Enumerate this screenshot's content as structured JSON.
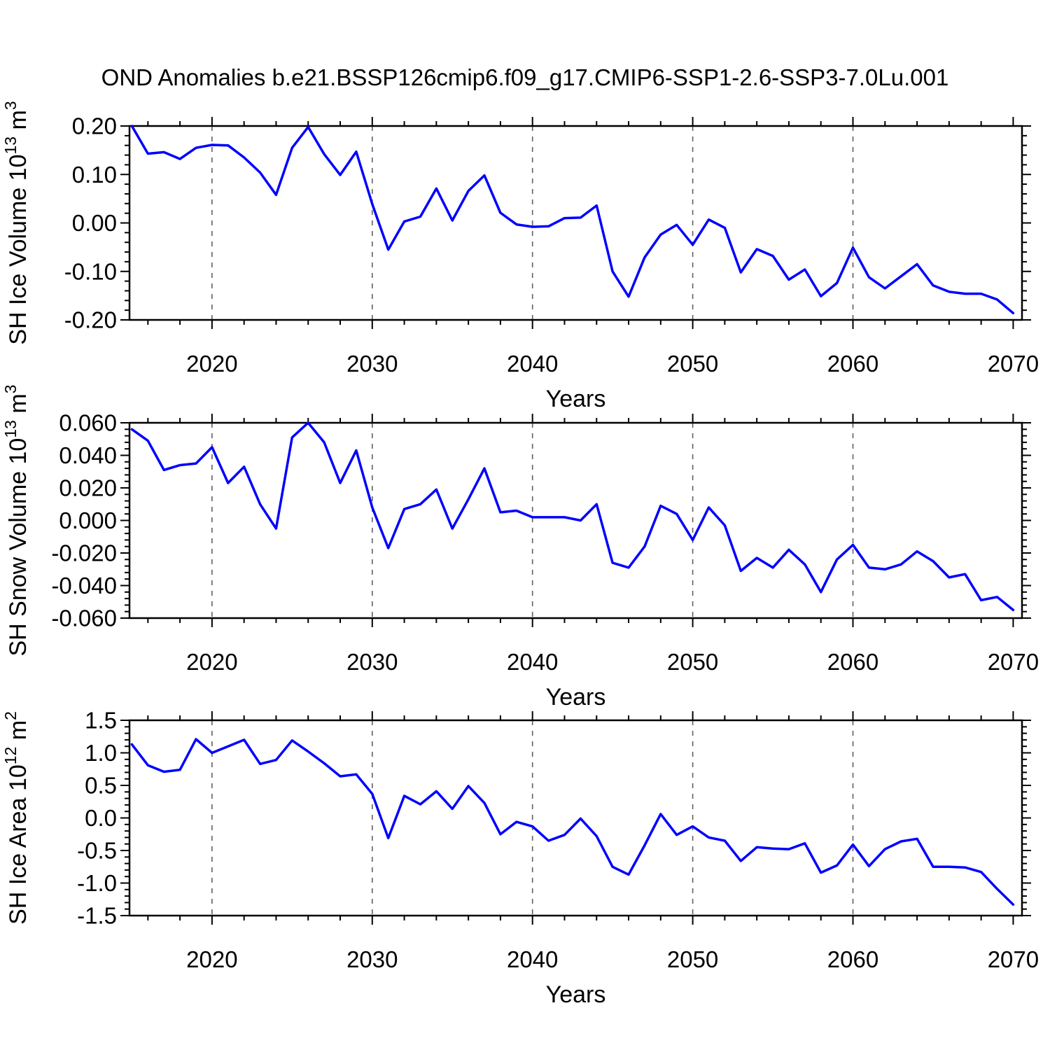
{
  "title": "OND Anomalies b.e21.BSSP126cmip6.f09_g17.CMIP6-SSP1-2.6-SSP3-7.0Lu.001",
  "styles": {
    "line_color": "#0000ff",
    "grid_color": "#606060",
    "axis_color": "#000000",
    "background": "#ffffff"
  },
  "chart_data": [
    {
      "id": "sh-ice-volume",
      "type": "line",
      "ylabel": "SH Ice Volume 10^13 m^3",
      "ylabel_segments": [
        {
          "t": "SH Ice Volume 10"
        },
        {
          "t": "13",
          "sup": true
        },
        {
          "t": " m"
        },
        {
          "t": "3",
          "sup": true
        }
      ],
      "xlabel": "Years",
      "ylim": [
        -0.2,
        0.2
      ],
      "y_major_step": 0.1,
      "y_minor_step": 0.02,
      "y_tick_labels": [
        {
          "v": 0.2,
          "label": "0.20"
        },
        {
          "v": 0.1,
          "label": "0.10"
        },
        {
          "v": 0.0,
          "label": "0.00"
        },
        {
          "v": -0.1,
          "label": "-0.10"
        },
        {
          "v": -0.2,
          "label": "-0.20"
        }
      ],
      "x_major_ticks": [
        2020,
        2030,
        2040,
        2050,
        2060,
        2070
      ],
      "x_minor_step": 2,
      "grid_years": [
        2020,
        2030,
        2040,
        2050,
        2060
      ],
      "xlim": [
        2014.85,
        2070.55
      ],
      "x": [
        2015,
        2016,
        2017,
        2018,
        2019,
        2020,
        2021,
        2022,
        2023,
        2024,
        2025,
        2026,
        2027,
        2028,
        2029,
        2030,
        2031,
        2032,
        2033,
        2034,
        2035,
        2036,
        2037,
        2038,
        2039,
        2040,
        2041,
        2042,
        2043,
        2044,
        2045,
        2046,
        2047,
        2048,
        2049,
        2050,
        2051,
        2052,
        2053,
        2054,
        2055,
        2056,
        2057,
        2058,
        2059,
        2060,
        2061,
        2062,
        2063,
        2064,
        2065,
        2066,
        2067,
        2068,
        2069,
        2070
      ],
      "values": [
        0.2,
        0.143,
        0.146,
        0.132,
        0.155,
        0.161,
        0.16,
        0.135,
        0.104,
        0.058,
        0.155,
        0.198,
        0.142,
        0.099,
        0.147,
        0.039,
        -0.055,
        0.003,
        0.013,
        0.071,
        0.005,
        0.066,
        0.098,
        0.021,
        -0.003,
        -0.008,
        -0.007,
        0.01,
        0.011,
        0.036,
        -0.1,
        -0.152,
        -0.071,
        -0.024,
        -0.004,
        -0.045,
        0.007,
        -0.01,
        -0.102,
        -0.054,
        -0.068,
        -0.117,
        -0.096,
        -0.151,
        -0.124,
        -0.051,
        -0.112,
        -0.135,
        -0.11,
        -0.085,
        -0.129,
        -0.142,
        -0.146,
        -0.146,
        -0.158,
        -0.186
      ]
    },
    {
      "id": "sh-snow-volume",
      "type": "line",
      "ylabel": "SH Snow Volume 10^13 m^3",
      "ylabel_segments": [
        {
          "t": "SH Snow Volume 10"
        },
        {
          "t": "13",
          "sup": true
        },
        {
          "t": " m"
        },
        {
          "t": "3",
          "sup": true
        }
      ],
      "xlabel": "Years",
      "ylim": [
        -0.06,
        0.06
      ],
      "y_major_step": 0.02,
      "y_minor_step": 0.004,
      "y_tick_labels": [
        {
          "v": 0.06,
          "label": "0.060"
        },
        {
          "v": 0.04,
          "label": "0.040"
        },
        {
          "v": 0.02,
          "label": "0.020"
        },
        {
          "v": 0.0,
          "label": "0.000"
        },
        {
          "v": -0.02,
          "label": "-0.020"
        },
        {
          "v": -0.04,
          "label": "-0.040"
        },
        {
          "v": -0.06,
          "label": "-0.060"
        }
      ],
      "x_major_ticks": [
        2020,
        2030,
        2040,
        2050,
        2060,
        2070
      ],
      "x_minor_step": 2,
      "grid_years": [
        2020,
        2030,
        2040,
        2050,
        2060
      ],
      "xlim": [
        2014.85,
        2070.55
      ],
      "x": [
        2015,
        2016,
        2017,
        2018,
        2019,
        2020,
        2021,
        2022,
        2023,
        2024,
        2025,
        2026,
        2027,
        2028,
        2029,
        2030,
        2031,
        2032,
        2033,
        2034,
        2035,
        2036,
        2037,
        2038,
        2039,
        2040,
        2041,
        2042,
        2043,
        2044,
        2045,
        2046,
        2047,
        2048,
        2049,
        2050,
        2051,
        2052,
        2053,
        2054,
        2055,
        2056,
        2057,
        2058,
        2059,
        2060,
        2061,
        2062,
        2063,
        2064,
        2065,
        2066,
        2067,
        2068,
        2069,
        2070
      ],
      "values": [
        0.056,
        0.049,
        0.031,
        0.034,
        0.035,
        0.045,
        0.023,
        0.033,
        0.01,
        -0.005,
        0.051,
        0.06,
        0.048,
        0.023,
        0.043,
        0.008,
        -0.017,
        0.007,
        0.01,
        0.019,
        -0.005,
        0.013,
        0.032,
        0.005,
        0.006,
        0.002,
        0.002,
        0.002,
        0.0,
        0.01,
        -0.026,
        -0.029,
        -0.016,
        0.009,
        0.004,
        -0.012,
        0.008,
        -0.003,
        -0.031,
        -0.023,
        -0.029,
        -0.018,
        -0.027,
        -0.044,
        -0.024,
        -0.015,
        -0.029,
        -0.03,
        -0.027,
        -0.019,
        -0.025,
        -0.035,
        -0.033,
        -0.049,
        -0.047,
        -0.055
      ]
    },
    {
      "id": "sh-ice-area",
      "type": "line",
      "ylabel": "SH Ice Area 10^12 m^2",
      "ylabel_segments": [
        {
          "t": "SH Ice Area 10"
        },
        {
          "t": "12",
          "sup": true
        },
        {
          "t": " m"
        },
        {
          "t": "2",
          "sup": true
        }
      ],
      "xlabel": "Years",
      "ylim": [
        -1.5,
        1.5
      ],
      "y_major_step": 0.5,
      "y_minor_step": 0.1,
      "y_tick_labels": [
        {
          "v": 1.5,
          "label": "1.5"
        },
        {
          "v": 1.0,
          "label": "1.0"
        },
        {
          "v": 0.5,
          "label": "0.5"
        },
        {
          "v": 0.0,
          "label": "0.0"
        },
        {
          "v": -0.5,
          "label": "-0.5"
        },
        {
          "v": -1.0,
          "label": "-1.0"
        },
        {
          "v": -1.5,
          "label": "-1.5"
        }
      ],
      "x_major_ticks": [
        2020,
        2030,
        2040,
        2050,
        2060,
        2070
      ],
      "x_minor_step": 2,
      "grid_years": [
        2020,
        2030,
        2040,
        2050,
        2060
      ],
      "xlim": [
        2014.85,
        2070.55
      ],
      "x": [
        2015,
        2016,
        2017,
        2018,
        2019,
        2020,
        2021,
        2022,
        2023,
        2024,
        2025,
        2026,
        2027,
        2028,
        2029,
        2030,
        2031,
        2032,
        2033,
        2034,
        2035,
        2036,
        2037,
        2038,
        2039,
        2040,
        2041,
        2042,
        2043,
        2044,
        2045,
        2046,
        2047,
        2048,
        2049,
        2050,
        2051,
        2052,
        2053,
        2054,
        2055,
        2056,
        2057,
        2058,
        2059,
        2060,
        2061,
        2062,
        2063,
        2064,
        2065,
        2066,
        2067,
        2068,
        2069,
        2070
      ],
      "values": [
        1.13,
        0.81,
        0.71,
        0.74,
        1.21,
        1.0,
        1.1,
        1.2,
        0.83,
        0.89,
        1.19,
        1.02,
        0.84,
        0.64,
        0.67,
        0.37,
        -0.31,
        0.34,
        0.21,
        0.41,
        0.14,
        0.49,
        0.23,
        -0.25,
        -0.06,
        -0.13,
        -0.35,
        -0.26,
        -0.01,
        -0.28,
        -0.75,
        -0.87,
        -0.42,
        0.06,
        -0.26,
        -0.13,
        -0.3,
        -0.35,
        -0.66,
        -0.45,
        -0.47,
        -0.48,
        -0.39,
        -0.84,
        -0.73,
        -0.41,
        -0.74,
        -0.48,
        -0.36,
        -0.32,
        -0.75,
        -0.75,
        -0.76,
        -0.83,
        -1.09,
        -1.33
      ]
    }
  ]
}
